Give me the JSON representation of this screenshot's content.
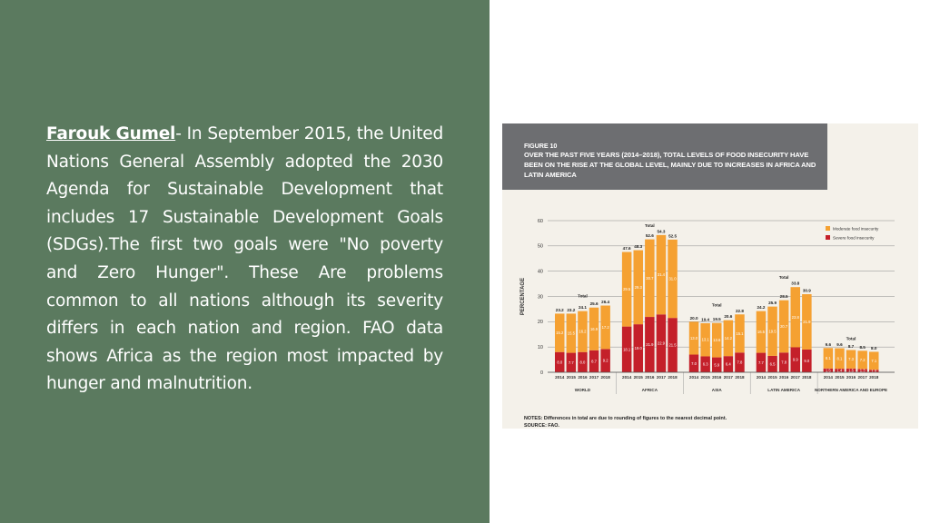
{
  "text": {
    "author": "Farouk Gumel",
    "body": "- In September 2015, the United Nations General Assembly adopted the 2030 Agenda for Sustainable Development that includes 17 Sustainable Development Goals (SDGs).The first two goals were \"No poverty and Zero Hunger\". These Are problems common to all nations although its severity differs in each nation and region. FAO data shows Africa as the region most impacted by hunger and malnutrition."
  },
  "figure": {
    "number": "FIGURE 10",
    "title_lines": [
      "OVER THE PAST FIVE YEARS (2014–2018), TOTAL LEVELS OF FOOD INSECURITY HAVE",
      "BEEN ON THE RISE AT THE GLOBAL LEVEL, MAINLY DUE TO INCREASES IN AFRICA AND",
      "LATIN AMERICA"
    ],
    "notes": "NOTES: Differences in total are due to rounding of figures to the nearest decimal point.",
    "source": "SOURCE: FAO."
  },
  "colors": {
    "panel_bg": "#5b7a5f",
    "moderate": "#f5a132",
    "severe": "#c4202a",
    "header_bg": "#6d6e71"
  },
  "chart_data": {
    "type": "bar",
    "stacked": true,
    "ylabel": "PERCENTAGE",
    "ylim": [
      0,
      60
    ],
    "yticks": [
      0,
      10,
      20,
      30,
      40,
      50,
      60
    ],
    "grid": true,
    "legend_position": "top-right",
    "total_label": "Total",
    "series_names": [
      "Moderate food insecurity",
      "Severe food insecurity"
    ],
    "years": [
      "2014",
      "2015",
      "2016",
      "2017",
      "2018"
    ],
    "groups": [
      {
        "name": "WORLD",
        "severe": [
          8.0,
          7.7,
          8.0,
          8.7,
          9.2
        ],
        "moderate": [
          15.2,
          15.5,
          16.2,
          16.9,
          17.2
        ],
        "total": [
          23.2,
          23.2,
          24.1,
          25.6,
          26.4
        ]
      },
      {
        "name": "AFRICA",
        "severe": [
          18.1,
          19.0,
          21.9,
          22.9,
          21.5
        ],
        "moderate": [
          29.5,
          29.3,
          30.7,
          31.4,
          31.0
        ],
        "total": [
          47.6,
          48.3,
          52.6,
          54.3,
          52.5
        ]
      },
      {
        "name": "ASIA",
        "severe": [
          7.0,
          6.3,
          5.9,
          6.4,
          7.8
        ],
        "moderate": [
          13.0,
          13.1,
          13.6,
          14.2,
          15.1
        ],
        "total": [
          20.0,
          19.4,
          19.5,
          20.6,
          22.8
        ]
      },
      {
        "name": "LATIN AMERICA",
        "severe": [
          7.7,
          6.5,
          7.8,
          9.9,
          9.0
        ],
        "moderate": [
          16.5,
          19.5,
          20.7,
          23.8,
          21.9
        ],
        "total": [
          24.2,
          25.9,
          28.5,
          33.8,
          30.9
        ]
      },
      {
        "name": "NORTHERN AMERICA AND EUROPE",
        "severe": [
          1.5,
          1.4,
          1.5,
          1.3,
          1.0
        ],
        "moderate": [
          8.1,
          8.1,
          7.3,
          7.2,
          7.1
        ],
        "total": [
          9.6,
          9.6,
          8.7,
          8.5,
          8.0
        ]
      }
    ]
  }
}
